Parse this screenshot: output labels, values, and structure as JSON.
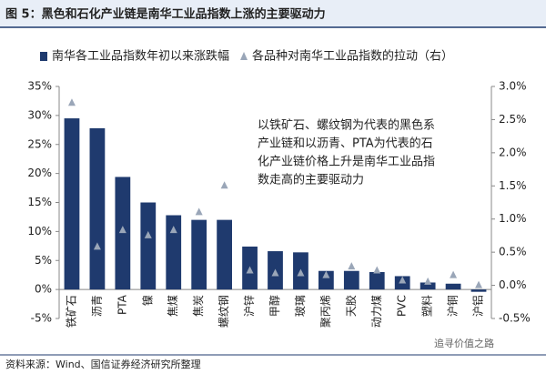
{
  "chart_data": {
    "type": "bar_marker",
    "title": "图 5：黑色和石化产业链是南华工业品指数上涨的主要驱动力",
    "categories": [
      "铁矿石",
      "沥青",
      "PTA",
      "镍",
      "焦煤",
      "焦炭",
      "螺纹钢",
      "沪锌",
      "甲醇",
      "玻璃",
      "聚丙烯",
      "天胶",
      "动力煤",
      "PVC",
      "塑料",
      "沪铜",
      "沪铝"
    ],
    "series": [
      {
        "name": "南华各工业品指数年初以来涨跌幅",
        "color": "#1f3a6e",
        "kind": "bar",
        "values": [
          29.5,
          27.8,
          19.4,
          15,
          12.8,
          12,
          12,
          7.4,
          6.6,
          6.4,
          3.2,
          3.2,
          3,
          2.3,
          1.2,
          1.0,
          -0.4
        ]
      },
      {
        "name": "各品种对南华工业品指数的拉动（右）",
        "color": "#9aa6b8",
        "kind": "marker",
        "axis": "y2",
        "values": [
          2.75,
          0.58,
          0.83,
          0.75,
          0.83,
          1.1,
          1.5,
          0.22,
          0.18,
          0.18,
          0.15,
          0.28,
          0.22,
          0.07,
          0.05,
          0.15,
          0.0
        ]
      }
    ],
    "ylim": [
      -5,
      35
    ],
    "yticks": [
      {
        "value": -5,
        "label": "-5%"
      },
      {
        "value": 0,
        "label": "0%"
      },
      {
        "value": 5,
        "label": "5%"
      },
      {
        "value": 10,
        "label": "10%"
      },
      {
        "value": 15,
        "label": "15%"
      },
      {
        "value": 20,
        "label": "20%"
      },
      {
        "value": 25,
        "label": "25%"
      },
      {
        "value": 30,
        "label": "30%"
      },
      {
        "value": 35,
        "label": "35%"
      }
    ],
    "y2lim": [
      -0.5,
      3.0
    ],
    "y2ticks": [
      {
        "value": -0.5,
        "label": "-0.5%"
      },
      {
        "value": 0,
        "label": "0.0%"
      },
      {
        "value": 0.5,
        "label": "0.5%"
      },
      {
        "value": 1.0,
        "label": "1.0%"
      },
      {
        "value": 1.5,
        "label": "1.5%"
      },
      {
        "value": 2.0,
        "label": "2.0%"
      },
      {
        "value": 2.5,
        "label": "2.5%"
      },
      {
        "value": 3.0,
        "label": "3.0%"
      }
    ],
    "legend": "top",
    "annotation": [
      "以铁矿石、螺纹钢为代表的黑色系",
      "产业链和以沥青、PTA为代表的石",
      "化产业链价格上升是南华工业品指",
      "数走高的主要驱动力"
    ],
    "source": "资料来源：Wind、国信证券经济研究所整理",
    "watermark": "追寻价值之路"
  }
}
